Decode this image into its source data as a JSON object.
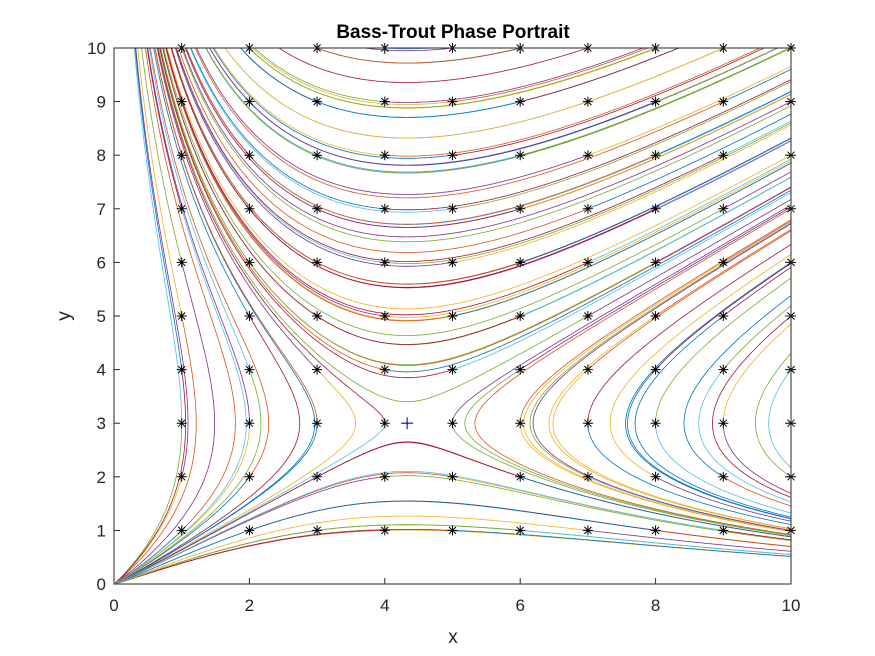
{
  "chart_data": {
    "type": "line",
    "title": "Bass-Trout Phase Portrait",
    "xlabel": "x",
    "ylabel": "y",
    "xlim": [
      0,
      10
    ],
    "ylim": [
      0,
      10
    ],
    "xticks": [
      "0",
      "2",
      "4",
      "6",
      "8",
      "10"
    ],
    "yticks": [
      "0",
      "1",
      "2",
      "3",
      "4",
      "5",
      "6",
      "7",
      "8",
      "9",
      "10"
    ],
    "grid": false,
    "legend": "none",
    "equilibrium": {
      "x": 4.33,
      "y": 3,
      "marker": "plus",
      "color": "#0000ff"
    },
    "initial_points": {
      "x": [
        1,
        2,
        3,
        4,
        5,
        6,
        7,
        8,
        9,
        10
      ],
      "y": [
        1,
        2,
        3,
        4,
        5,
        6,
        7,
        8,
        9,
        10
      ],
      "marker": "asterisk",
      "color": "#000000"
    },
    "series_colors": [
      "#0072bd",
      "#d95319",
      "#edb120",
      "#7e2f8e",
      "#77ac30",
      "#4dbeee",
      "#a2142f"
    ]
  }
}
